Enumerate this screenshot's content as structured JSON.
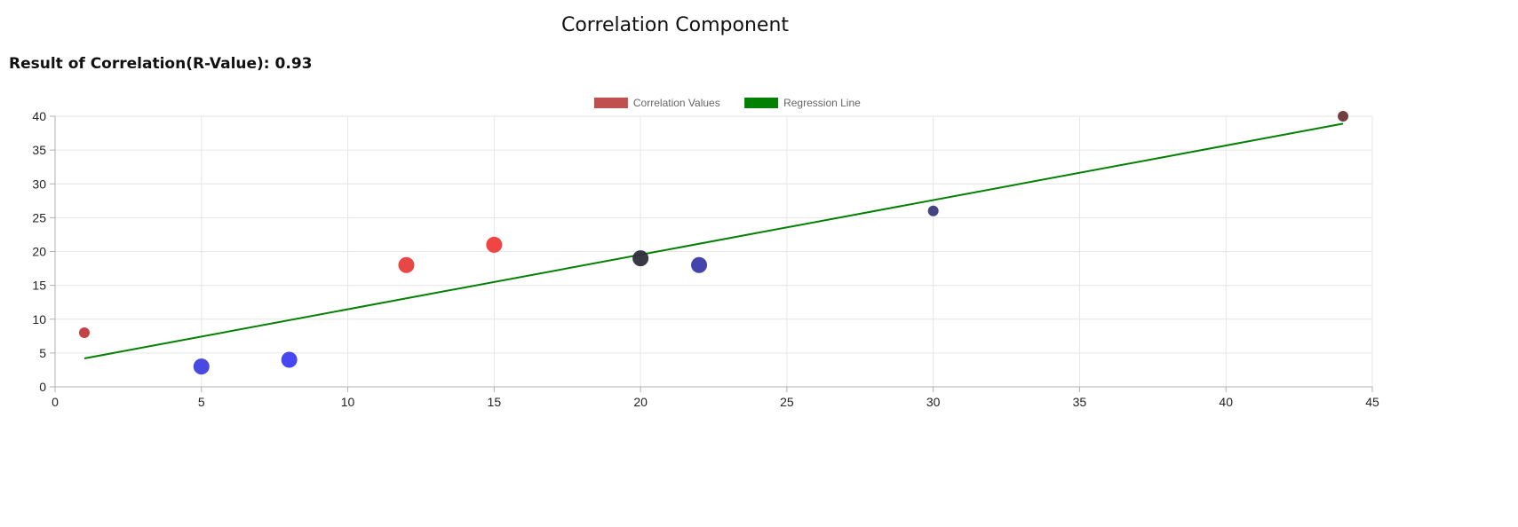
{
  "page": {
    "title": "Correlation Component",
    "result_label": "Result of Correlation(R-Value):",
    "result_value": "0.93"
  },
  "chart_data": {
    "type": "scatter",
    "title": "",
    "xlabel": "",
    "ylabel": "",
    "xlim": [
      0,
      45
    ],
    "ylim": [
      0,
      40
    ],
    "x_ticks": [
      0,
      5,
      10,
      15,
      20,
      25,
      30,
      35,
      40,
      45
    ],
    "y_ticks": [
      0,
      5,
      10,
      15,
      20,
      25,
      30,
      35,
      40
    ],
    "grid": true,
    "legend_placement": "top-center",
    "legend": [
      {
        "label": "Correlation Values",
        "color": "#c0504d"
      },
      {
        "label": "Regression Line",
        "color": "#008000"
      }
    ],
    "series": [
      {
        "name": "Correlation Values",
        "type": "scatter",
        "points": [
          {
            "x": 1,
            "y": 8,
            "size": "small",
            "color": "#c0393b"
          },
          {
            "x": 5,
            "y": 3,
            "size": "large",
            "color": "#3f3fe0"
          },
          {
            "x": 8,
            "y": 4,
            "size": "large",
            "color": "#3d3df0"
          },
          {
            "x": 12,
            "y": 18,
            "size": "large",
            "color": "#e83c3c"
          },
          {
            "x": 15,
            "y": 21,
            "size": "large",
            "color": "#f03b3b"
          },
          {
            "x": 20,
            "y": 19,
            "size": "large",
            "color": "#2e2e3a"
          },
          {
            "x": 22,
            "y": 18,
            "size": "large",
            "color": "#3a3aa8"
          },
          {
            "x": 30,
            "y": 26,
            "size": "small",
            "color": "#3a3a78"
          },
          {
            "x": 44,
            "y": 40,
            "size": "small",
            "color": "#6a3535"
          }
        ]
      },
      {
        "name": "Regression Line",
        "type": "line",
        "color": "#008000",
        "x": [
          1,
          44
        ],
        "y": [
          4.2,
          38.9
        ]
      }
    ]
  }
}
